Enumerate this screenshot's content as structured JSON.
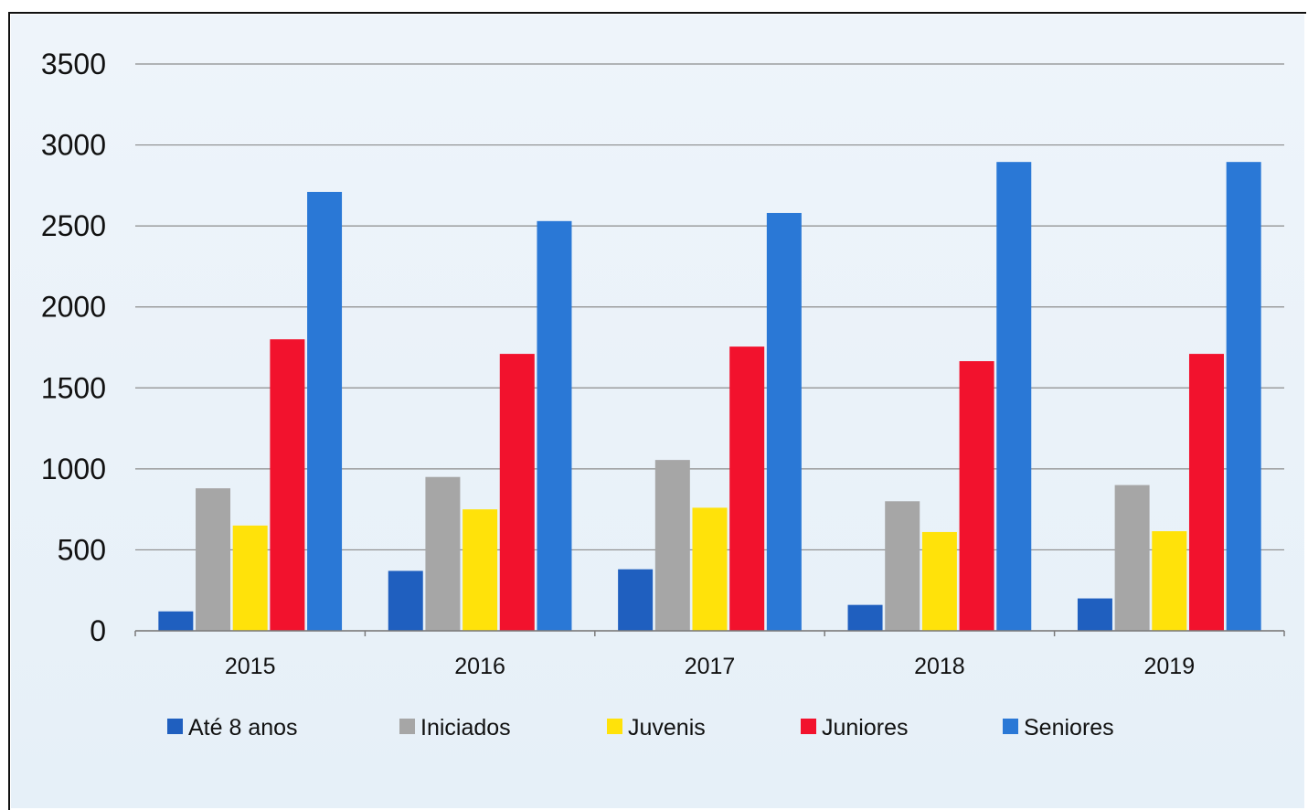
{
  "chart_data": {
    "type": "bar",
    "title": "",
    "xlabel": "",
    "ylabel": "",
    "ylim": [
      0,
      3500
    ],
    "yticks": [
      0,
      500,
      1000,
      1500,
      2000,
      2500,
      3000,
      3500
    ],
    "grid": true,
    "legend_position": "bottom",
    "categories": [
      "2015",
      "2016",
      "2017",
      "2018",
      "2019"
    ],
    "series": [
      {
        "name": "Até 8 anos",
        "color": "#1F5FBF",
        "values": [
          120,
          370,
          380,
          160,
          200
        ]
      },
      {
        "name": "Iniciados",
        "color": "#A6A6A6",
        "values": [
          880,
          950,
          1055,
          800,
          900
        ]
      },
      {
        "name": "Juvenis",
        "color": "#FFE20A",
        "values": [
          650,
          750,
          760,
          610,
          615
        ]
      },
      {
        "name": "Juniores",
        "color": "#F2122D",
        "values": [
          1800,
          1710,
          1755,
          1665,
          1710
        ]
      },
      {
        "name": "Seniores",
        "color": "#2A78D6",
        "values": [
          2710,
          2530,
          2580,
          2895,
          2895
        ]
      }
    ]
  }
}
